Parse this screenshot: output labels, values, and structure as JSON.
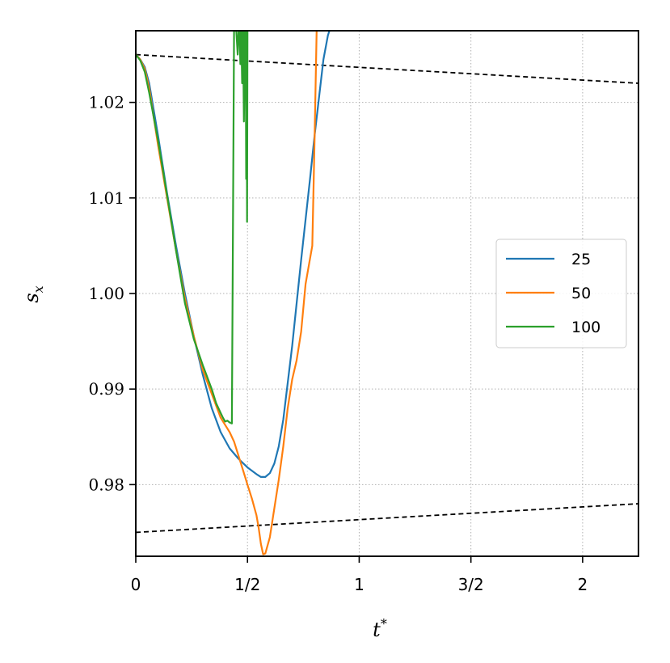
{
  "chart_data": {
    "type": "line",
    "xlabel": "t",
    "xlabel_sup": "*",
    "ylabel": "s",
    "ylabel_sub": "x",
    "xlim": [
      0,
      1.125
    ],
    "ylim": [
      0.9725,
      1.0275
    ],
    "grid": true,
    "legend_position": "right",
    "x_ticks": [
      {
        "value": 0,
        "label": "0"
      },
      {
        "value": 0.25,
        "label": "1/2"
      },
      {
        "value": 0.5,
        "label": "1"
      },
      {
        "value": 0.75,
        "label": "3/2"
      },
      {
        "value": 1.0,
        "label": "2"
      }
    ],
    "y_ticks": [
      {
        "value": 0.98,
        "label": "0.98"
      },
      {
        "value": 0.99,
        "label": "0.99"
      },
      {
        "value": 1.0,
        "label": "1.00"
      },
      {
        "value": 1.01,
        "label": "1.01"
      },
      {
        "value": 1.02,
        "label": "1.02"
      }
    ],
    "reference_lines": [
      {
        "style": "dashed",
        "color": "#000000",
        "x": [
          0,
          1.125
        ],
        "y": [
          1.025,
          1.022
        ]
      },
      {
        "style": "dashed",
        "color": "#000000",
        "x": [
          0,
          1.125
        ],
        "y": [
          0.975,
          0.978
        ]
      }
    ],
    "series": [
      {
        "name": "25",
        "color": "#1f77b4",
        "x": [
          0,
          0.01,
          0.02,
          0.03,
          0.05,
          0.07,
          0.09,
          0.11,
          0.13,
          0.15,
          0.17,
          0.19,
          0.21,
          0.23,
          0.25,
          0.27,
          0.28,
          0.29,
          0.3,
          0.31,
          0.32,
          0.33,
          0.35,
          0.37,
          0.39,
          0.4,
          0.41,
          0.42,
          0.43,
          0.44
        ],
        "y": [
          1.025,
          1.0245,
          1.0237,
          1.022,
          1.0165,
          1.0105,
          1.005,
          1.0,
          0.9955,
          0.9915,
          0.988,
          0.9855,
          0.9838,
          0.9827,
          0.9818,
          0.9811,
          0.9808,
          0.9808,
          0.9812,
          0.9822,
          0.984,
          0.9868,
          0.9945,
          1.0035,
          1.012,
          1.0165,
          1.0205,
          1.0245,
          1.027,
          1.0285
        ]
      },
      {
        "name": "50",
        "color": "#ff7f0e",
        "x": [
          0,
          0.01,
          0.02,
          0.03,
          0.05,
          0.07,
          0.09,
          0.11,
          0.13,
          0.15,
          0.17,
          0.19,
          0.21,
          0.22,
          0.23,
          0.24,
          0.25,
          0.26,
          0.27,
          0.275,
          0.28,
          0.285,
          0.29,
          0.3,
          0.31,
          0.32,
          0.33,
          0.34,
          0.35,
          0.36,
          0.37,
          0.38,
          0.395,
          0.4,
          0.405
        ],
        "y": [
          1.025,
          1.0245,
          1.0235,
          1.0215,
          1.0155,
          1.01,
          1.0045,
          0.9995,
          0.9955,
          0.992,
          0.9895,
          0.987,
          0.9855,
          0.9845,
          0.983,
          0.9815,
          0.98,
          0.9785,
          0.9768,
          0.9755,
          0.9738,
          0.9727,
          0.9728,
          0.9745,
          0.9775,
          0.9805,
          0.984,
          0.988,
          0.991,
          0.993,
          0.996,
          1.001,
          1.005,
          1.016,
          1.028
        ]
      },
      {
        "name": "100",
        "color": "#2ca02c",
        "x": [
          0,
          0.01,
          0.02,
          0.03,
          0.05,
          0.07,
          0.09,
          0.11,
          0.13,
          0.15,
          0.17,
          0.18,
          0.19,
          0.195,
          0.2,
          0.205,
          0.21,
          0.215,
          0.22,
          0.225,
          0.228,
          0.23,
          0.232,
          0.234,
          0.236,
          0.238,
          0.24,
          0.242,
          0.244,
          0.246,
          0.247,
          0.248,
          0.249,
          0.25,
          0.251
        ],
        "y": [
          1.025,
          1.0244,
          1.0232,
          1.021,
          1.016,
          1.0103,
          1.0045,
          0.999,
          0.9952,
          0.9925,
          0.99,
          0.9885,
          0.9875,
          0.987,
          0.9866,
          0.9867,
          0.9865,
          0.9864,
          1.0275,
          1.0275,
          1.025,
          1.0275,
          1.0275,
          1.024,
          1.0275,
          1.022,
          1.0275,
          1.018,
          1.0275,
          1.0275,
          1.012,
          1.0275,
          1.0075,
          1.0275,
          1.0275
        ]
      }
    ]
  }
}
